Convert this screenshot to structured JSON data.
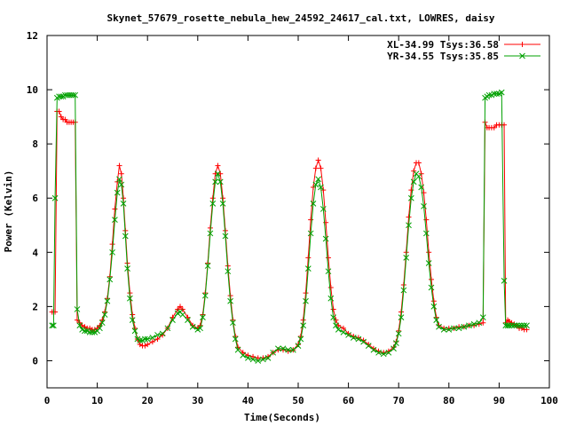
{
  "chart_data": {
    "type": "line",
    "title": "Skynet_57679_rosette_nebula_hew_24592_24617_cal.txt, LOWRES, daisy",
    "xlabel": "Time(Seconds)",
    "ylabel": "Power (Kelvin)",
    "xlim": [
      0,
      100
    ],
    "ylim": [
      -1,
      12
    ],
    "xticks": [
      0,
      10,
      20,
      30,
      40,
      50,
      60,
      70,
      80,
      90,
      100
    ],
    "yticks": [
      0,
      2,
      4,
      6,
      8,
      10,
      12
    ],
    "grid": false,
    "legend_position": "top-right",
    "series": [
      {
        "name": "XL-34.99 Tsys:36.58",
        "color": "#ff0000",
        "marker": "plus",
        "points": [
          [
            1.0,
            1.8
          ],
          [
            1.3,
            1.8
          ],
          [
            1.6,
            1.8
          ],
          [
            2.0,
            9.2
          ],
          [
            2.4,
            9.2
          ],
          [
            2.8,
            9.0
          ],
          [
            3.2,
            8.9
          ],
          [
            3.6,
            8.9
          ],
          [
            4.0,
            8.8
          ],
          [
            4.4,
            8.8
          ],
          [
            4.8,
            8.8
          ],
          [
            5.2,
            8.8
          ],
          [
            5.6,
            8.8
          ],
          [
            6.0,
            1.5
          ],
          [
            6.5,
            1.4
          ],
          [
            7.0,
            1.3
          ],
          [
            7.5,
            1.25
          ],
          [
            8.0,
            1.2
          ],
          [
            8.5,
            1.2
          ],
          [
            9.0,
            1.15
          ],
          [
            9.5,
            1.15
          ],
          [
            10.0,
            1.2
          ],
          [
            10.5,
            1.3
          ],
          [
            11.0,
            1.5
          ],
          [
            11.5,
            1.8
          ],
          [
            12.0,
            2.3
          ],
          [
            12.5,
            3.1
          ],
          [
            13.0,
            4.3
          ],
          [
            13.5,
            5.6
          ],
          [
            14.0,
            6.6
          ],
          [
            14.4,
            7.2
          ],
          [
            14.8,
            6.9
          ],
          [
            15.2,
            6.0
          ],
          [
            15.6,
            4.8
          ],
          [
            16.0,
            3.6
          ],
          [
            16.5,
            2.5
          ],
          [
            17.0,
            1.7
          ],
          [
            17.5,
            1.2
          ],
          [
            18.0,
            0.8
          ],
          [
            18.5,
            0.6
          ],
          [
            19.0,
            0.55
          ],
          [
            19.5,
            0.55
          ],
          [
            20.0,
            0.6
          ],
          [
            21.0,
            0.7
          ],
          [
            22.0,
            0.8
          ],
          [
            23.0,
            0.95
          ],
          [
            24.0,
            1.2
          ],
          [
            25.0,
            1.6
          ],
          [
            26.0,
            1.9
          ],
          [
            26.5,
            2.0
          ],
          [
            27.0,
            1.9
          ],
          [
            28.0,
            1.6
          ],
          [
            29.0,
            1.3
          ],
          [
            30.0,
            1.2
          ],
          [
            30.5,
            1.3
          ],
          [
            31.0,
            1.7
          ],
          [
            31.5,
            2.5
          ],
          [
            32.0,
            3.6
          ],
          [
            32.5,
            4.9
          ],
          [
            33.0,
            6.0
          ],
          [
            33.5,
            6.9
          ],
          [
            34.0,
            7.2
          ],
          [
            34.5,
            6.9
          ],
          [
            35.0,
            6.0
          ],
          [
            35.5,
            4.8
          ],
          [
            36.0,
            3.5
          ],
          [
            36.5,
            2.4
          ],
          [
            37.0,
            1.5
          ],
          [
            37.5,
            0.9
          ],
          [
            38.0,
            0.5
          ],
          [
            39.0,
            0.3
          ],
          [
            40.0,
            0.2
          ],
          [
            41.0,
            0.15
          ],
          [
            42.0,
            0.1
          ],
          [
            43.0,
            0.1
          ],
          [
            44.0,
            0.15
          ],
          [
            45.0,
            0.3
          ],
          [
            46.0,
            0.4
          ],
          [
            47.0,
            0.4
          ],
          [
            48.0,
            0.35
          ],
          [
            49.0,
            0.4
          ],
          [
            50.0,
            0.6
          ],
          [
            50.5,
            0.9
          ],
          [
            51.0,
            1.5
          ],
          [
            51.5,
            2.5
          ],
          [
            52.0,
            3.8
          ],
          [
            52.5,
            5.2
          ],
          [
            53.0,
            6.4
          ],
          [
            53.5,
            7.1
          ],
          [
            54.0,
            7.4
          ],
          [
            54.5,
            7.1
          ],
          [
            55.0,
            6.3
          ],
          [
            55.5,
            5.1
          ],
          [
            56.0,
            3.8
          ],
          [
            56.5,
            2.7
          ],
          [
            57.0,
            1.9
          ],
          [
            57.5,
            1.5
          ],
          [
            58.0,
            1.3
          ],
          [
            59.0,
            1.2
          ],
          [
            60.0,
            1.0
          ],
          [
            61.0,
            0.9
          ],
          [
            62.0,
            0.85
          ],
          [
            63.0,
            0.75
          ],
          [
            64.0,
            0.6
          ],
          [
            65.0,
            0.45
          ],
          [
            66.0,
            0.35
          ],
          [
            67.0,
            0.3
          ],
          [
            68.0,
            0.35
          ],
          [
            69.0,
            0.5
          ],
          [
            69.5,
            0.7
          ],
          [
            70.0,
            1.1
          ],
          [
            70.5,
            1.8
          ],
          [
            71.0,
            2.8
          ],
          [
            71.5,
            4.0
          ],
          [
            72.0,
            5.3
          ],
          [
            72.5,
            6.3
          ],
          [
            73.0,
            7.0
          ],
          [
            73.5,
            7.3
          ],
          [
            74.0,
            7.3
          ],
          [
            74.5,
            6.9
          ],
          [
            75.0,
            6.2
          ],
          [
            75.5,
            5.2
          ],
          [
            76.0,
            4.0
          ],
          [
            76.5,
            3.0
          ],
          [
            77.0,
            2.2
          ],
          [
            77.5,
            1.6
          ],
          [
            78.0,
            1.3
          ],
          [
            79.0,
            1.2
          ],
          [
            80.0,
            1.2
          ],
          [
            81.0,
            1.2
          ],
          [
            82.0,
            1.25
          ],
          [
            83.0,
            1.25
          ],
          [
            84.0,
            1.3
          ],
          [
            85.0,
            1.3
          ],
          [
            86.0,
            1.35
          ],
          [
            86.8,
            1.4
          ],
          [
            87.2,
            8.8
          ],
          [
            87.6,
            8.6
          ],
          [
            88.0,
            8.6
          ],
          [
            88.5,
            8.6
          ],
          [
            89.0,
            8.6
          ],
          [
            89.5,
            8.7
          ],
          [
            90.0,
            8.7
          ],
          [
            90.5,
            8.7
          ],
          [
            91.0,
            8.7
          ],
          [
            91.3,
            1.4
          ],
          [
            91.7,
            1.5
          ],
          [
            92.0,
            1.45
          ],
          [
            92.5,
            1.4
          ],
          [
            93.0,
            1.35
          ],
          [
            93.5,
            1.3
          ],
          [
            94.0,
            1.2
          ],
          [
            94.5,
            1.2
          ],
          [
            95.0,
            1.15
          ],
          [
            95.5,
            1.15
          ]
        ]
      },
      {
        "name": "YR-34.55 Tsys:35.85",
        "color": "#00a000",
        "marker": "cross",
        "points": [
          [
            1.0,
            1.3
          ],
          [
            1.3,
            1.3
          ],
          [
            1.6,
            6.0
          ],
          [
            2.0,
            9.7
          ],
          [
            2.4,
            9.75
          ],
          [
            2.8,
            9.75
          ],
          [
            3.2,
            9.75
          ],
          [
            3.6,
            9.8
          ],
          [
            4.0,
            9.8
          ],
          [
            4.4,
            9.8
          ],
          [
            4.8,
            9.8
          ],
          [
            5.2,
            9.8
          ],
          [
            5.6,
            9.8
          ],
          [
            6.0,
            1.9
          ],
          [
            6.5,
            1.3
          ],
          [
            7.0,
            1.15
          ],
          [
            7.5,
            1.1
          ],
          [
            8.0,
            1.1
          ],
          [
            8.5,
            1.05
          ],
          [
            9.0,
            1.05
          ],
          [
            9.5,
            1.05
          ],
          [
            10.0,
            1.1
          ],
          [
            10.5,
            1.2
          ],
          [
            11.0,
            1.4
          ],
          [
            11.5,
            1.7
          ],
          [
            12.0,
            2.2
          ],
          [
            12.5,
            3.0
          ],
          [
            13.0,
            4.0
          ],
          [
            13.5,
            5.2
          ],
          [
            14.0,
            6.2
          ],
          [
            14.4,
            6.7
          ],
          [
            14.8,
            6.5
          ],
          [
            15.2,
            5.8
          ],
          [
            15.6,
            4.6
          ],
          [
            16.0,
            3.4
          ],
          [
            16.5,
            2.3
          ],
          [
            17.0,
            1.5
          ],
          [
            17.5,
            1.1
          ],
          [
            18.0,
            0.8
          ],
          [
            18.5,
            0.75
          ],
          [
            19.0,
            0.75
          ],
          [
            19.5,
            0.8
          ],
          [
            20.0,
            0.8
          ],
          [
            21.0,
            0.85
          ],
          [
            22.0,
            0.95
          ],
          [
            23.0,
            1.0
          ],
          [
            24.0,
            1.2
          ],
          [
            25.0,
            1.5
          ],
          [
            26.0,
            1.75
          ],
          [
            26.5,
            1.8
          ],
          [
            27.0,
            1.7
          ],
          [
            28.0,
            1.5
          ],
          [
            29.0,
            1.25
          ],
          [
            30.0,
            1.15
          ],
          [
            30.5,
            1.2
          ],
          [
            31.0,
            1.6
          ],
          [
            31.5,
            2.4
          ],
          [
            32.0,
            3.5
          ],
          [
            32.5,
            4.7
          ],
          [
            33.0,
            5.8
          ],
          [
            33.5,
            6.6
          ],
          [
            34.0,
            6.9
          ],
          [
            34.5,
            6.6
          ],
          [
            35.0,
            5.8
          ],
          [
            35.5,
            4.6
          ],
          [
            36.0,
            3.3
          ],
          [
            36.5,
            2.2
          ],
          [
            37.0,
            1.4
          ],
          [
            37.5,
            0.8
          ],
          [
            38.0,
            0.4
          ],
          [
            39.0,
            0.2
          ],
          [
            40.0,
            0.1
          ],
          [
            41.0,
            0.05
          ],
          [
            42.0,
            0.0
          ],
          [
            43.0,
            0.05
          ],
          [
            44.0,
            0.1
          ],
          [
            45.0,
            0.3
          ],
          [
            46.0,
            0.45
          ],
          [
            47.0,
            0.45
          ],
          [
            48.0,
            0.4
          ],
          [
            49.0,
            0.4
          ],
          [
            50.0,
            0.55
          ],
          [
            50.5,
            0.8
          ],
          [
            51.0,
            1.3
          ],
          [
            51.5,
            2.2
          ],
          [
            52.0,
            3.4
          ],
          [
            52.5,
            4.7
          ],
          [
            53.0,
            5.8
          ],
          [
            53.5,
            6.5
          ],
          [
            54.0,
            6.7
          ],
          [
            54.5,
            6.4
          ],
          [
            55.0,
            5.6
          ],
          [
            55.5,
            4.5
          ],
          [
            56.0,
            3.3
          ],
          [
            56.5,
            2.3
          ],
          [
            57.0,
            1.6
          ],
          [
            57.5,
            1.3
          ],
          [
            58.0,
            1.15
          ],
          [
            59.0,
            1.05
          ],
          [
            60.0,
            0.95
          ],
          [
            61.0,
            0.85
          ],
          [
            62.0,
            0.8
          ],
          [
            63.0,
            0.7
          ],
          [
            64.0,
            0.55
          ],
          [
            65.0,
            0.4
          ],
          [
            66.0,
            0.3
          ],
          [
            67.0,
            0.25
          ],
          [
            68.0,
            0.3
          ],
          [
            69.0,
            0.45
          ],
          [
            69.5,
            0.65
          ],
          [
            70.0,
            1.0
          ],
          [
            70.5,
            1.6
          ],
          [
            71.0,
            2.6
          ],
          [
            71.5,
            3.8
          ],
          [
            72.0,
            5.0
          ],
          [
            72.5,
            6.0
          ],
          [
            73.0,
            6.6
          ],
          [
            73.5,
            6.9
          ],
          [
            74.0,
            6.8
          ],
          [
            74.5,
            6.4
          ],
          [
            75.0,
            5.7
          ],
          [
            75.5,
            4.7
          ],
          [
            76.0,
            3.6
          ],
          [
            76.5,
            2.7
          ],
          [
            77.0,
            2.0
          ],
          [
            77.5,
            1.5
          ],
          [
            78.0,
            1.25
          ],
          [
            79.0,
            1.15
          ],
          [
            80.0,
            1.15
          ],
          [
            81.0,
            1.2
          ],
          [
            82.0,
            1.2
          ],
          [
            83.0,
            1.25
          ],
          [
            84.0,
            1.3
          ],
          [
            85.0,
            1.35
          ],
          [
            86.0,
            1.4
          ],
          [
            86.8,
            1.6
          ],
          [
            87.2,
            9.7
          ],
          [
            87.6,
            9.75
          ],
          [
            88.0,
            9.8
          ],
          [
            88.5,
            9.8
          ],
          [
            89.0,
            9.85
          ],
          [
            89.5,
            9.85
          ],
          [
            90.0,
            9.85
          ],
          [
            90.5,
            9.9
          ],
          [
            91.0,
            2.95
          ],
          [
            91.3,
            1.3
          ],
          [
            91.7,
            1.3
          ],
          [
            92.0,
            1.3
          ],
          [
            92.5,
            1.3
          ],
          [
            93.0,
            1.3
          ],
          [
            93.5,
            1.3
          ],
          [
            94.0,
            1.3
          ],
          [
            94.5,
            1.3
          ],
          [
            95.0,
            1.3
          ],
          [
            95.5,
            1.3
          ]
        ]
      }
    ]
  }
}
